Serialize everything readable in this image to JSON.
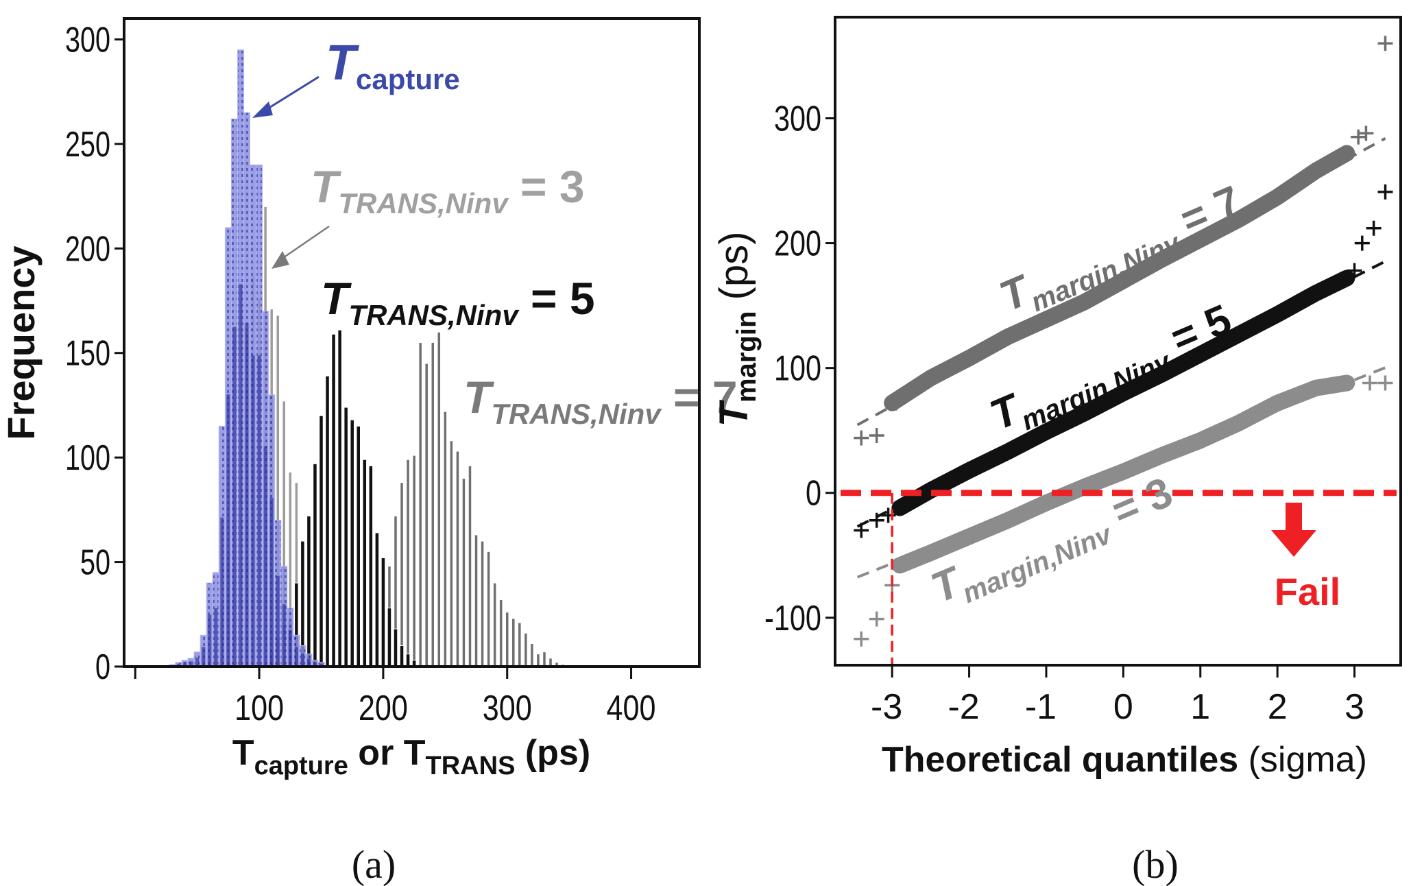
{
  "figure": {
    "panels": [
      "(a)",
      "(b)"
    ]
  },
  "colors": {
    "capture_fill": "#8a8ee0",
    "capture_dark": "#2c2f9a",
    "capture_label": "#3b4aa8",
    "ninv3": "#9c9c9c",
    "ninv5": "#111111",
    "ninv7": "#6f6f6f",
    "fail_red": "#ee2024",
    "axis": "#111111"
  },
  "chart_data": [
    {
      "id": "a",
      "type": "bar",
      "subtype": "histogram-overlay",
      "title": "",
      "xlabel": {
        "main": "T",
        "sub1": "capture",
        "mid": " or T",
        "sub2": "TRANS",
        "end": " (ps)"
      },
      "ylabel": "Frequency",
      "xlim": [
        -9,
        455
      ],
      "ylim": [
        0,
        310
      ],
      "xticks": [
        0,
        100,
        200,
        300,
        400
      ],
      "xtick_labels": [
        "",
        "100",
        "200",
        "300",
        "400"
      ],
      "yticks": [
        0,
        50,
        100,
        150,
        200,
        250,
        300
      ],
      "ytick_labels": [
        "0",
        "50",
        "100",
        "150",
        "200",
        "250",
        "300"
      ],
      "bin_width_ps": 5,
      "grid": false,
      "series": [
        {
          "name": "T_TRANS,Ninv = 7",
          "color_key": "ninv7",
          "x": [
            165,
            170,
            175,
            180,
            185,
            190,
            195,
            200,
            205,
            210,
            215,
            220,
            225,
            230,
            235,
            240,
            245,
            250,
            255,
            260,
            265,
            270,
            275,
            280,
            285,
            290,
            295,
            300,
            305,
            310,
            315,
            320,
            325,
            330,
            335,
            340,
            345
          ],
          "values": [
            1,
            2,
            3,
            8,
            12,
            16,
            22,
            48,
            48,
            72,
            88,
            99,
            101,
            155,
            145,
            155,
            160,
            122,
            108,
            103,
            90,
            96,
            63,
            60,
            55,
            40,
            32,
            26,
            23,
            21,
            16,
            11,
            6,
            7,
            4,
            2,
            1
          ]
        },
        {
          "name": "T_TRANS,Ninv = 3",
          "color_key": "ninv3",
          "x": [
            55,
            60,
            65,
            70,
            75,
            80,
            85,
            90,
            95,
            100,
            105,
            110,
            115,
            120,
            125,
            130,
            135,
            140,
            145,
            150,
            155,
            160
          ],
          "values": [
            2,
            5,
            12,
            28,
            55,
            88,
            120,
            160,
            187,
            176,
            220,
            171,
            168,
            127,
            93,
            88,
            60,
            40,
            30,
            15,
            10,
            6
          ]
        },
        {
          "name": "T_TRANS,Ninv = 5",
          "color_key": "ninv5",
          "x": [
            110,
            115,
            120,
            125,
            130,
            135,
            140,
            145,
            150,
            155,
            160,
            165,
            170,
            175,
            180,
            185,
            190,
            195,
            200,
            205,
            210,
            215,
            220,
            225
          ],
          "values": [
            8,
            14,
            20,
            22,
            40,
            60,
            72,
            97,
            120,
            139,
            159,
            161,
            124,
            118,
            115,
            99,
            96,
            64,
            52,
            28,
            18,
            10,
            6,
            3
          ]
        },
        {
          "name": "T_capture",
          "color_key": "capture_fill",
          "x": [
            30,
            35,
            40,
            45,
            50,
            55,
            60,
            65,
            70,
            75,
            80,
            85,
            90,
            95,
            100,
            105,
            110,
            115,
            120,
            125,
            130,
            135,
            140,
            145,
            150
          ],
          "values": [
            1,
            2,
            3,
            4,
            7,
            15,
            40,
            45,
            115,
            210,
            262,
            295,
            265,
            240,
            240,
            170,
            130,
            70,
            48,
            28,
            15,
            10,
            6,
            3,
            2
          ]
        }
      ],
      "annotations": [
        {
          "id": "capture",
          "main": "T",
          "sub": "capture",
          "tail": "",
          "color_key": "capture_label",
          "arrow_to": [
            92,
            262
          ],
          "text_at": [
            162,
            290
          ]
        },
        {
          "id": "ninv3",
          "main": "T",
          "sub": "TRANS,Ninv",
          "tail": " = 3",
          "color_key": "ninv3",
          "arrow_to": [
            108,
            190
          ],
          "text_at": [
            146,
            230
          ]
        },
        {
          "id": "ninv5",
          "main": "T",
          "sub": "TRANS,Ninv",
          "tail": " = 5",
          "color_key": "ninv5"
        },
        {
          "id": "ninv7",
          "main": "T",
          "sub": "TRANS,Ninv",
          "tail": " = 7",
          "color_key": "ninv7"
        }
      ]
    },
    {
      "id": "b",
      "type": "scatter",
      "subtype": "qq-plot",
      "title": "",
      "xlabel": {
        "bold": "Theoretical quantiles",
        "normal": " (sigma)"
      },
      "ylabel": {
        "main": "T",
        "sub": "margin",
        "end": " (ps)"
      },
      "xlim": [
        -3.74,
        3.6
      ],
      "ylim": [
        -138,
        381
      ],
      "xticks": [
        -3,
        -2,
        -1,
        0,
        1,
        2,
        3
      ],
      "xtick_labels": [
        "-3",
        "-2",
        "-1",
        "0",
        "1",
        "2",
        "3"
      ],
      "yticks": [
        -100,
        0,
        100,
        200,
        300
      ],
      "ytick_labels": [
        "-100",
        "0",
        "100",
        "200",
        "300"
      ],
      "grid": false,
      "series": [
        {
          "name": "T_margin,Ninv = 7",
          "color_key": "ninv7",
          "fit_line": {
            "slope": 33.5,
            "intercept": 170
          },
          "band_range": [
            -3.0,
            2.9
          ],
          "points_x": [
            -3.0,
            -2.5,
            -2.0,
            -1.5,
            -1.0,
            -0.5,
            0,
            0.5,
            1.0,
            1.5,
            2.0,
            2.5,
            2.9
          ],
          "points_y": [
            72,
            92,
            108,
            125,
            139,
            153,
            170,
            187,
            203,
            219,
            237,
            258,
            272
          ],
          "outliers": [
            [
              -3.4,
              44
            ],
            [
              -3.2,
              46
            ],
            [
              -2.95,
              72
            ],
            [
              3.05,
              285
            ],
            [
              3.15,
              288
            ],
            [
              3.4,
              360
            ]
          ]
        },
        {
          "name": "T_margin,Ninv = 5",
          "color_key": "ninv5",
          "fit_line": {
            "slope": 31,
            "intercept": 80
          },
          "band_range": [
            -2.9,
            2.9
          ],
          "points_x": [
            -2.9,
            -2.5,
            -2.0,
            -1.5,
            -1.0,
            -0.5,
            0,
            0.5,
            1.0,
            1.5,
            2.0,
            2.5,
            2.9
          ],
          "points_y": [
            -12,
            2,
            18,
            33,
            49,
            64,
            80,
            95,
            111,
            127,
            143,
            160,
            172
          ],
          "outliers": [
            [
              -3.4,
              -30
            ],
            [
              -3.2,
              -22
            ],
            [
              -3.05,
              -18
            ],
            [
              3.0,
              178
            ],
            [
              3.1,
              200
            ],
            [
              3.25,
              212
            ],
            [
              3.4,
              241
            ]
          ]
        },
        {
          "name": "T_margin,Ninv = 3",
          "color_key": "ninv3",
          "fit_line": {
            "slope": 24.5,
            "intercept": 17
          },
          "band_range": [
            -2.9,
            2.9
          ],
          "points_x": [
            -2.9,
            -2.5,
            -2.0,
            -1.5,
            -1.0,
            -0.5,
            0,
            0.5,
            1.0,
            1.5,
            2.0,
            2.5,
            2.9
          ],
          "points_y": [
            -58,
            -48,
            -35,
            -22,
            -8,
            5,
            17,
            30,
            42,
            56,
            72,
            84,
            88
          ],
          "outliers": [
            [
              -3.4,
              -117
            ],
            [
              -3.2,
              -101
            ],
            [
              -3.0,
              -74
            ],
            [
              3.2,
              88
            ],
            [
              3.4,
              88
            ]
          ]
        }
      ],
      "threshold": {
        "y": 0,
        "x_sigma": -3,
        "label": "Fail",
        "color_key": "fail_red"
      },
      "annotations": [
        {
          "id": "m7",
          "main": "T",
          "sub": "margin,Ninv",
          "tail": " = 7",
          "color_key": "ninv7"
        },
        {
          "id": "m5",
          "main": "T",
          "sub": "margin,Ninv",
          "tail": " = 5",
          "color_key": "ninv5"
        },
        {
          "id": "m3",
          "main": "T",
          "sub": "margin,Ninv",
          "tail": " = 3",
          "color_key": "ninv3"
        }
      ]
    }
  ]
}
